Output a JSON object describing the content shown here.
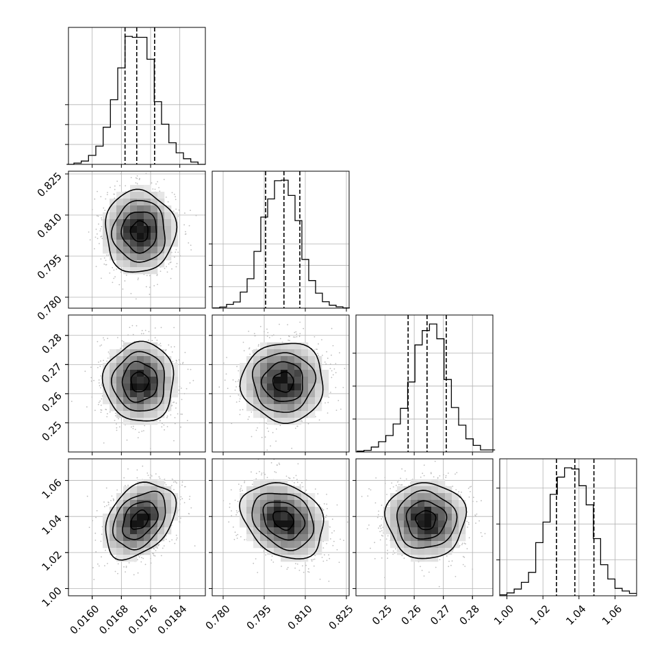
{
  "chart_data": {
    "type": "corner",
    "grid": true,
    "params": [
      {
        "range": [
          0.01535,
          0.0191
        ],
        "ticks": [
          0.016,
          0.0168,
          0.0176,
          0.0184
        ],
        "tick_labels": [
          "0.0160",
          "0.0168",
          "0.0176",
          "0.0184"
        ],
        "quantiles": [
          0.0169,
          0.01722,
          0.01771
        ],
        "hist": {
          "x": [
            0.0154,
            0.0156,
            0.0158,
            0.016,
            0.0162,
            0.0164,
            0.0166,
            0.0168,
            0.017,
            0.0172,
            0.0174,
            0.0176,
            0.0178,
            0.018,
            0.0182,
            0.0184,
            0.0186,
            0.0188,
            0.019
          ],
          "counts": [
            0,
            4,
            10,
            27,
            55,
            112,
            195,
            291,
            386,
            383,
            383,
            317,
            189,
            121,
            65,
            35,
            17,
            7,
            0
          ]
        }
      },
      {
        "range": [
          0.776,
          0.826
        ],
        "ticks": [
          0.78,
          0.795,
          0.81,
          0.825
        ],
        "tick_labels": [
          "0.780",
          "0.795",
          "0.810",
          "0.825"
        ],
        "quantiles": [
          0.7955,
          0.8022,
          0.808
        ],
        "hist": {
          "x": [
            0.7775,
            0.78,
            0.7825,
            0.785,
            0.7875,
            0.79,
            0.7925,
            0.795,
            0.7975,
            0.8,
            0.8025,
            0.805,
            0.8075,
            0.81,
            0.8125,
            0.815,
            0.8175,
            0.82,
            0.8225,
            0.825
          ],
          "counts": [
            1,
            4,
            14,
            23,
            60,
            110,
            212,
            340,
            408,
            476,
            478,
            421,
            327,
            182,
            103,
            56,
            24,
            11,
            5,
            1
          ]
        }
      },
      {
        "range": [
          0.24,
          0.287
        ],
        "ticks": [
          0.25,
          0.26,
          0.27,
          0.28
        ],
        "tick_labels": [
          "0.25",
          "0.26",
          "0.27",
          "0.28"
        ],
        "quantiles": [
          0.2579,
          0.2644,
          0.271
        ],
        "hist": {
          "x": [
            0.2415,
            0.244,
            0.2465,
            0.249,
            0.2515,
            0.254,
            0.2565,
            0.259,
            0.2615,
            0.264,
            0.2665,
            0.269,
            0.2715,
            0.274,
            0.2765,
            0.279,
            0.2815,
            0.284,
            0.2865
          ],
          "counts": [
            2,
            4,
            12,
            25,
            40,
            68,
            106,
            170,
            260,
            295,
            311,
            275,
            176,
            108,
            65,
            32,
            16,
            5,
            5
          ]
        }
      },
      {
        "range": [
          0.996,
          1.072
        ],
        "ticks": [
          1.0,
          1.02,
          1.04,
          1.06
        ],
        "tick_labels": [
          "1.00",
          "1.02",
          "1.04",
          "1.06"
        ],
        "quantiles": [
          1.0275,
          1.0377,
          1.0483
        ],
        "hist": {
          "x": [
            0.998,
            1.002,
            1.006,
            1.01,
            1.014,
            1.018,
            1.022,
            1.026,
            1.03,
            1.034,
            1.038,
            1.042,
            1.046,
            1.05,
            1.054,
            1.058,
            1.062,
            1.066,
            1.07
          ],
          "counts": [
            4,
            12,
            28,
            56,
            98,
            222,
            308,
            424,
            496,
            535,
            530,
            460,
            380,
            239,
            130,
            70,
            31,
            20,
            10
          ]
        }
      }
    ],
    "hist_grid": [
      [
        60,
        120,
        180
      ],
      [
        80,
        160,
        240
      ],
      [
        80,
        160,
        240
      ],
      [
        150,
        300,
        450
      ]
    ],
    "panels": [
      {
        "row": 1,
        "col": 0,
        "center": [
          0.0173,
          0.804
        ],
        "sd": [
          0.00048,
          0.0075
        ],
        "rho": 0.0
      },
      {
        "row": 2,
        "col": 0,
        "center": [
          0.0173,
          0.264
        ],
        "sd": [
          0.00048,
          0.0068
        ],
        "rho": 0.0
      },
      {
        "row": 2,
        "col": 1,
        "center": [
          0.802,
          0.264
        ],
        "sd": [
          0.0075,
          0.0068
        ],
        "rho": 0.0
      },
      {
        "row": 3,
        "col": 0,
        "center": [
          0.0173,
          1.038
        ],
        "sd": [
          0.00048,
          0.0105
        ],
        "rho": 0.35
      },
      {
        "row": 3,
        "col": 1,
        "center": [
          0.802,
          1.038
        ],
        "sd": [
          0.0075,
          0.0105
        ],
        "rho": -0.25
      },
      {
        "row": 3,
        "col": 2,
        "center": [
          0.264,
          1.038
        ],
        "sd": [
          0.0068,
          0.0105
        ],
        "rho": 0.0
      }
    ]
  }
}
